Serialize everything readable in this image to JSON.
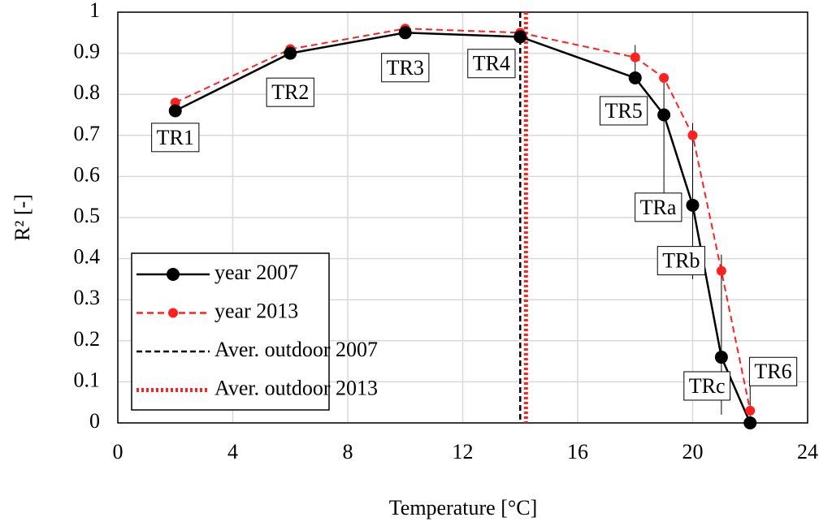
{
  "chart_data": {
    "type": "line",
    "x_label": "Temperature [°C]",
    "y_label": "R² [-]",
    "xlim": [
      0,
      24
    ],
    "xticks": [
      0,
      4,
      8,
      12,
      16,
      20,
      24
    ],
    "ylim": [
      0,
      1
    ],
    "yticks": [
      0,
      0.1,
      0.2,
      0.3,
      0.4,
      0.5,
      0.6,
      0.7,
      0.8,
      0.9,
      1
    ],
    "grid": true,
    "legend": "lower left",
    "x": [
      2,
      6,
      10,
      14,
      18,
      19,
      20,
      21,
      22
    ],
    "series": [
      {
        "name": "year 2007",
        "color": "#000000",
        "style": "solid",
        "values": [
          0.76,
          0.9,
          0.95,
          0.94,
          0.84,
          0.75,
          0.53,
          0.16,
          0.0
        ]
      },
      {
        "name": "year 2013",
        "color": "#ff2020",
        "style": "dashed",
        "values": [
          0.78,
          0.91,
          0.96,
          0.95,
          0.89,
          0.84,
          0.7,
          0.37,
          0.03
        ]
      }
    ],
    "reference_lines": [
      {
        "name": "Aver. outdoor 2007",
        "color": "#000000",
        "style": "dashed",
        "x": 14.0
      },
      {
        "name": "Aver. outdoor 2013",
        "color": "#ff2020",
        "style": "dotted",
        "x": 14.2
      }
    ],
    "annotations": [
      "TR1",
      "TR2",
      "TR3",
      "TR4",
      "TR5",
      "TRa",
      "TRb",
      "TRc",
      "TR6"
    ]
  }
}
